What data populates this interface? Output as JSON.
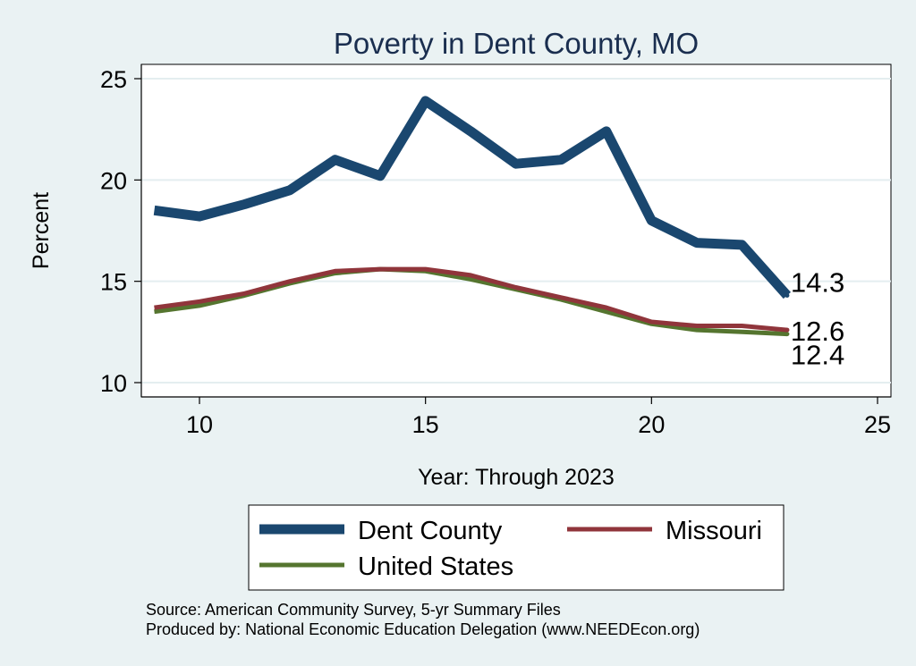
{
  "chart_data": {
    "type": "line",
    "title": "Poverty in Dent County, MO",
    "xlabel": "Year: Through 2023",
    "ylabel": "Percent",
    "xlim": [
      9,
      25
    ],
    "ylim": [
      10,
      25
    ],
    "xticks": [
      10,
      15,
      20,
      25
    ],
    "yticks": [
      10,
      15,
      20,
      25
    ],
    "grid": true,
    "x": [
      9,
      10,
      11,
      12,
      13,
      14,
      15,
      16,
      17,
      18,
      19,
      20,
      21,
      22,
      23
    ],
    "series": [
      {
        "name": "Dent County",
        "color": "#1a476f",
        "values": [
          18.5,
          18.2,
          18.8,
          19.5,
          21.0,
          20.2,
          23.9,
          22.4,
          20.8,
          21.0,
          22.4,
          18.0,
          16.9,
          16.8,
          14.3
        ],
        "end_label": "14.3"
      },
      {
        "name": "Missouri",
        "color": "#90353b",
        "values": [
          13.7,
          14.0,
          14.4,
          15.0,
          15.5,
          15.6,
          15.6,
          15.3,
          14.7,
          14.2,
          13.7,
          13.0,
          12.8,
          12.8,
          12.6
        ],
        "end_label": "12.6"
      },
      {
        "name": "United States",
        "color": "#55752f",
        "values": [
          13.5,
          13.8,
          14.3,
          14.9,
          15.4,
          15.6,
          15.5,
          15.1,
          14.6,
          14.1,
          13.5,
          12.9,
          12.6,
          12.5,
          12.4
        ],
        "end_label": "12.4"
      }
    ],
    "legend": {
      "position": "bottom",
      "entries": [
        "Dent County",
        "Missouri",
        "United States"
      ]
    },
    "notes": [
      "Source: American Community Survey, 5-yr Summary Files",
      "Produced by: National Economic Education Delegation (www.NEEDEcon.org)"
    ]
  }
}
